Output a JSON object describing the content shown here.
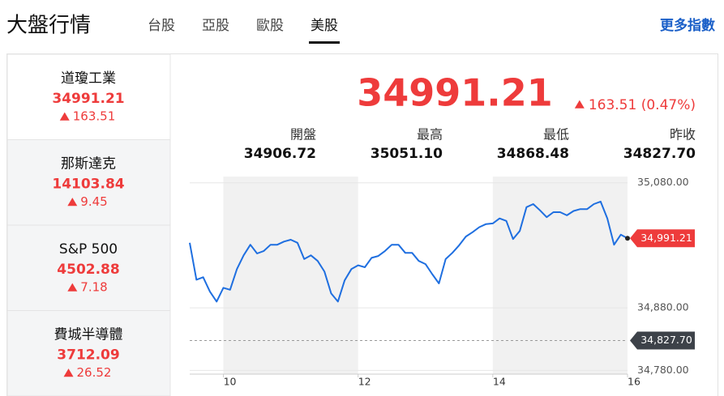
{
  "header": {
    "title": "大盤行情",
    "tabs": [
      "台股",
      "亞股",
      "歐股",
      "美股"
    ],
    "active_tab": 3,
    "more": "更多指數"
  },
  "indices": [
    {
      "name": "道瓊工業",
      "value": "34991.21",
      "change": "163.51"
    },
    {
      "name": "那斯達克",
      "value": "14103.84",
      "change": "9.45"
    },
    {
      "name": "S&P 500",
      "value": "4502.88",
      "change": "7.18"
    },
    {
      "name": "費城半導體",
      "value": "3712.09",
      "change": "26.52"
    }
  ],
  "active_index": 0,
  "quote": {
    "price": "34991.21",
    "change": "163.51 (0.47%)",
    "stats": [
      {
        "label": "開盤",
        "value": "34906.72"
      },
      {
        "label": "最高",
        "value": "35051.10"
      },
      {
        "label": "最低",
        "value": "34868.48"
      },
      {
        "label": "昨收",
        "value": "34827.70"
      }
    ]
  },
  "chart_data": {
    "type": "line",
    "color": "#1f6fe0",
    "x": [
      9.5,
      9.6,
      9.7,
      9.8,
      9.9,
      10.0,
      10.1,
      10.2,
      10.3,
      10.4,
      10.5,
      10.6,
      10.7,
      10.8,
      10.9,
      11.0,
      11.1,
      11.2,
      11.3,
      11.4,
      11.5,
      11.6,
      11.7,
      11.8,
      11.9,
      12.0,
      12.1,
      12.2,
      12.3,
      12.4,
      12.5,
      12.6,
      12.7,
      12.8,
      12.9,
      13.0,
      13.1,
      13.2,
      13.3,
      13.4,
      13.5,
      13.6,
      13.7,
      13.8,
      13.9,
      14.0,
      14.1,
      14.2,
      14.3,
      14.4,
      14.5,
      14.6,
      14.7,
      14.8,
      14.9,
      15.0,
      15.1,
      15.2,
      15.3,
      15.4,
      15.5,
      15.6,
      15.7,
      15.8,
      15.9,
      16.0
    ],
    "values": [
      34984,
      34925,
      34929,
      34906,
      34890,
      34912,
      34909,
      34942,
      34964,
      34981,
      34967,
      34971,
      34981,
      34981,
      34986,
      34989,
      34984,
      34958,
      34964,
      34955,
      34938,
      34903,
      34890,
      34924,
      34942,
      34948,
      34945,
      34960,
      34963,
      34971,
      34981,
      34981,
      34968,
      34968,
      34955,
      34950,
      34934,
      34919,
      34958,
      34968,
      34980,
      34994,
      35001,
      35009,
      35014,
      35015,
      35023,
      35019,
      34990,
      35003,
      35041,
      35046,
      35036,
      35025,
      35033,
      35033,
      35028,
      35035,
      35038,
      35038,
      35046,
      35050,
      35023,
      34981,
      34997,
      34991.21
    ],
    "xlim": [
      9.5,
      16
    ],
    "ylim": [
      34774,
      35090
    ],
    "xticks": [
      10,
      12,
      14,
      16
    ],
    "yticks": [
      {
        "value": 35080,
        "label": "35,080.00"
      },
      {
        "value": 34880,
        "label": "34,880.00"
      },
      {
        "value": 34780,
        "label": "34,780.00"
      }
    ],
    "shaded_bands": [
      [
        10,
        12
      ],
      [
        14,
        16
      ]
    ],
    "markers": [
      {
        "value": 34991.21,
        "label": "34,991.21",
        "color": "#ee3b3b"
      },
      {
        "value": 34827.7,
        "label": "34,827.70",
        "color": "#3d4249",
        "dashed": true
      }
    ]
  }
}
